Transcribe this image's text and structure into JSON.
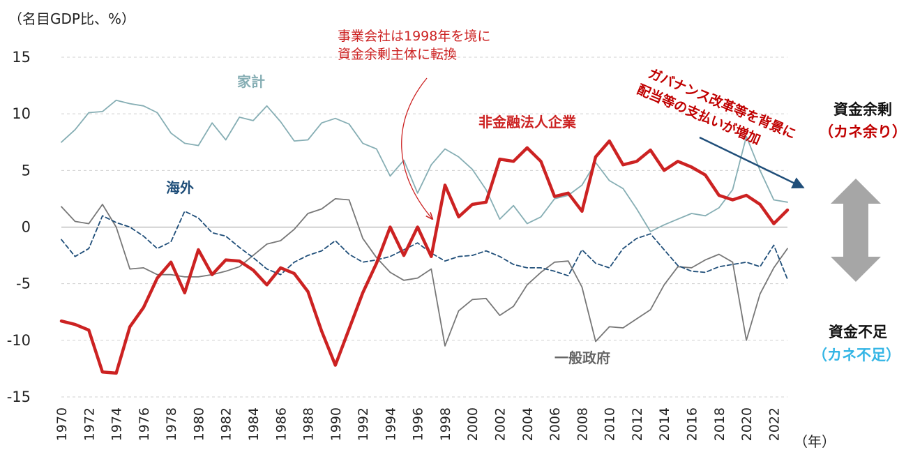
{
  "chart_data": {
    "type": "line",
    "ylabel": "（名目GDP比、%）",
    "xlabel": "（年）",
    "ylim": [
      -15,
      15
    ],
    "yticks": [
      15,
      10,
      5,
      0,
      -5,
      -10,
      -15
    ],
    "xlim": [
      1970,
      2023
    ],
    "xtick_labels": [
      "1970",
      "1972",
      "1974",
      "1976",
      "1978",
      "1980",
      "1982",
      "1984",
      "1986",
      "1988",
      "1990",
      "1992",
      "1994",
      "1996",
      "1998",
      "2000",
      "2002",
      "2004",
      "2006",
      "2008",
      "2010",
      "2012",
      "2014",
      "2016",
      "2018",
      "2020",
      "2022"
    ],
    "grid": "horizontal dashed",
    "x": [
      1970,
      1971,
      1972,
      1973,
      1974,
      1975,
      1976,
      1977,
      1978,
      1979,
      1980,
      1981,
      1982,
      1983,
      1984,
      1985,
      1986,
      1987,
      1988,
      1989,
      1990,
      1991,
      1992,
      1993,
      1994,
      1995,
      1996,
      1997,
      1998,
      1999,
      2000,
      2001,
      2002,
      2003,
      2004,
      2005,
      2006,
      2007,
      2008,
      2009,
      2010,
      2011,
      2012,
      2013,
      2014,
      2015,
      2016,
      2017,
      2018,
      2019,
      2020,
      2021,
      2022,
      2023
    ],
    "series": [
      {
        "key": "corp",
        "name": "非金融法人企業",
        "color": "#cc2222",
        "style": "solid-thick",
        "values": [
          -8.3,
          -8.6,
          -9.1,
          -12.8,
          -12.9,
          -8.8,
          -7.1,
          -4.5,
          -3.1,
          -5.8,
          -2.0,
          -4.2,
          -2.9,
          -3.0,
          -3.8,
          -5.1,
          -3.6,
          -4.1,
          -5.7,
          -9.2,
          -12.2,
          -9.0,
          -5.8,
          -3.2,
          0.0,
          -2.5,
          0.0,
          -2.6,
          3.7,
          0.9,
          2.0,
          2.2,
          6.0,
          5.8,
          7.0,
          5.8,
          2.7,
          3.0,
          1.4,
          6.2,
          7.6,
          5.5,
          5.8,
          6.8,
          5.0,
          5.8,
          5.3,
          4.6,
          2.8,
          2.4,
          2.8,
          2.0,
          0.3,
          1.5
        ]
      },
      {
        "key": "household",
        "name": "家計",
        "color": "#86aeb4",
        "style": "solid",
        "values": [
          7.5,
          8.6,
          10.1,
          10.2,
          11.2,
          10.9,
          10.7,
          10.1,
          8.3,
          7.4,
          7.2,
          9.2,
          7.7,
          9.7,
          9.4,
          10.7,
          9.3,
          7.6,
          7.7,
          9.2,
          9.6,
          9.1,
          7.4,
          6.9,
          4.5,
          5.9,
          3.0,
          5.5,
          6.9,
          6.2,
          5.1,
          3.3,
          0.7,
          1.9,
          0.3,
          0.9,
          2.5,
          2.8,
          3.7,
          5.7,
          4.1,
          3.4,
          1.6,
          -0.4,
          0.2,
          0.7,
          1.2,
          1.0,
          1.7,
          3.3,
          8.0,
          5.0,
          2.4,
          2.2
        ]
      },
      {
        "key": "overseas",
        "name": "海外",
        "color": "#1f4e79",
        "style": "dashed",
        "values": [
          -1.1,
          -2.6,
          -1.9,
          1.0,
          0.4,
          0.0,
          -0.8,
          -1.9,
          -1.3,
          1.4,
          0.8,
          -0.5,
          -0.8,
          -1.8,
          -2.7,
          -3.7,
          -4.2,
          -3.1,
          -2.5,
          -2.1,
          -1.2,
          -2.4,
          -3.1,
          -2.9,
          -2.6,
          -2.0,
          -1.4,
          -2.3,
          -3.0,
          -2.6,
          -2.5,
          -2.1,
          -2.6,
          -3.3,
          -3.6,
          -3.6,
          -3.9,
          -4.3,
          -2.0,
          -3.2,
          -3.6,
          -1.9,
          -1.0,
          -0.6,
          -2.0,
          -3.4,
          -3.9,
          -4.0,
          -3.5,
          -3.3,
          -3.1,
          -3.5,
          -1.6,
          -4.6
        ]
      },
      {
        "key": "gov",
        "name": "一般政府",
        "color": "#777777",
        "style": "solid",
        "values": [
          1.8,
          0.5,
          0.3,
          2.0,
          0.0,
          -3.7,
          -3.6,
          -4.2,
          -4.2,
          -4.4,
          -4.4,
          -4.2,
          -3.9,
          -3.5,
          -2.5,
          -1.5,
          -1.2,
          -0.2,
          1.2,
          1.6,
          2.5,
          2.4,
          -1.0,
          -2.7,
          -4.0,
          -4.7,
          -4.5,
          -3.7,
          -10.5,
          -7.4,
          -6.4,
          -6.3,
          -7.8,
          -7.0,
          -5.1,
          -4.0,
          -3.1,
          -3.0,
          -5.3,
          -10.1,
          -8.8,
          -8.9,
          -8.1,
          -7.3,
          -5.1,
          -3.5,
          -3.6,
          -2.9,
          -2.4,
          -3.1,
          -10.0,
          -5.9,
          -3.6,
          -1.9
        ]
      }
    ],
    "annotations": {
      "turn_line1": "事業会社は1998年を境に",
      "turn_line2": "資金余剰主体に転換",
      "gov_line1": "ガバナンス改革等を背景に",
      "gov_line2": "配当等の支払いが増加",
      "surplus_title": "資金余剰",
      "surplus_sub": "（カネ余り）",
      "deficit_title": "資金不足",
      "deficit_sub": "（カネ不足）"
    },
    "colors": {
      "axis_text": "#222222",
      "corp_red": "#cc2222",
      "dark_red_text": "#c00000",
      "navy_arrow": "#1f4e79",
      "grey_arrow": "#a6a6a6",
      "sky_blue": "#33b5e5",
      "grid": "#d0d0d0",
      "zero_line": "#999999"
    }
  }
}
